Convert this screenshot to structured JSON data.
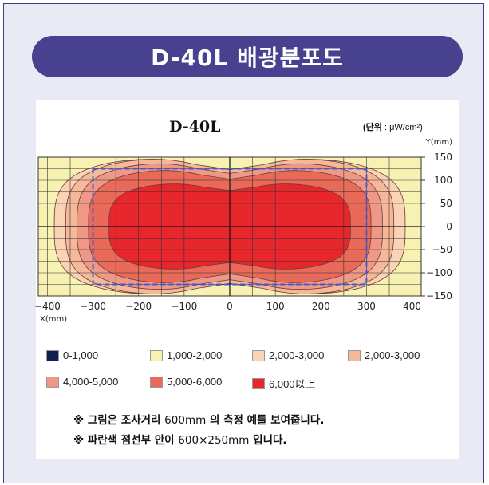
{
  "header": {
    "title": "D-40L 배광분포도"
  },
  "chart_data": {
    "type": "heatmap",
    "title": "D-40L",
    "unit_label": "(단위 : μW/cm²)",
    "unit_prefix": "(단위",
    "unit_suffix": ": μW/cm²)",
    "xlabel": "X(mm)",
    "ylabel": "Y(mm)",
    "x_ticks": [
      "−400",
      "−300",
      "−200",
      "−100",
      "0",
      "100",
      "200",
      "300",
      "400"
    ],
    "y_ticks": [
      "150",
      "100",
      "50",
      "0",
      "−50",
      "−100",
      "−150"
    ],
    "xlim": [
      -420,
      420
    ],
    "ylim": [
      -150,
      150
    ],
    "grid": true,
    "measured_area": {
      "x": [
        -300,
        300
      ],
      "y": [
        -125,
        125
      ],
      "style": "blue dashed rectangle"
    },
    "contour_bands": [
      {
        "range": "1,000-2,000",
        "outer_x": 420,
        "outer_y": 150
      },
      {
        "range": "2,000-3,000",
        "outer_x": 385,
        "outer_y": 150
      },
      {
        "range": "2,000-3,000",
        "outer_x": 360,
        "outer_y": 150
      },
      {
        "range": "4,000-5,000",
        "outer_x": 335,
        "outer_y": 140
      },
      {
        "range": "5,000-6,000",
        "outer_x": 310,
        "outer_y": 125
      },
      {
        "range": "6,000以上",
        "outer_x": 265,
        "outer_y": 95
      }
    ]
  },
  "legend": {
    "items": [
      {
        "label": "0-1,000",
        "color": "#0f1f4f"
      },
      {
        "label": "1,000-2,000",
        "color": "#f7f2b2"
      },
      {
        "label": "2,000-3,000",
        "color": "#f9d3b4"
      },
      {
        "label": "2,000-3,000",
        "color": "#f5b99a"
      },
      {
        "label": "4,000-5,000",
        "color": "#f09888"
      },
      {
        "label": "5,000-6,000",
        "color": "#ea6a5a"
      },
      {
        "label": "6,000以上",
        "color": "#e8272c"
      }
    ]
  },
  "notes": {
    "line1_a": "※ 그림은 조사거리 ",
    "line1_b": "600mm",
    "line1_c": " 의 측정 예를 보여줍니다.",
    "line2_a": "※ 파란색 점선부 안이 ",
    "line2_b": "600×250mm",
    "line2_c": " 입니다."
  },
  "colors": {
    "frame_bg": "#e9eaf3",
    "pill": "#47418f",
    "dashed": "#3d5bd9"
  }
}
